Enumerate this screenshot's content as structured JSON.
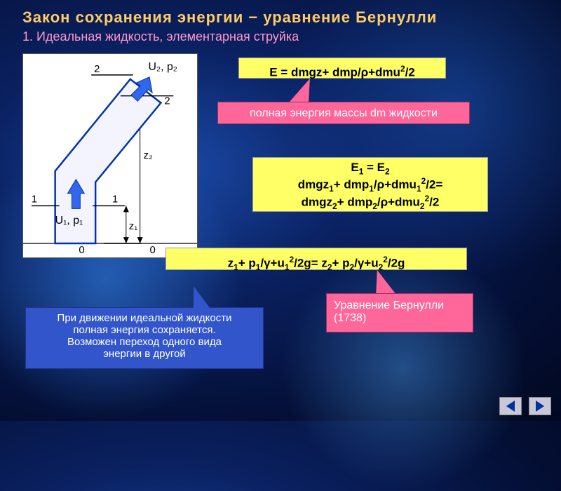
{
  "colors": {
    "title": "#ffcc66",
    "subtitle": "#ff99cc",
    "yellow_box": "#ffff66",
    "pink_box": "#ff6699",
    "blue_box": "#3355cc",
    "nav_arrow": "#003399"
  },
  "title": "Закон сохранения  энергии − уравнение Бернулли",
  "subtitle": "1. Идеальная жидкость, элементарная струйка",
  "diagram": {
    "labels": {
      "u2p2": "U₂, p₂",
      "u1p1": "U₁, p₁",
      "z1": "z₁",
      "z2": "z₂",
      "sec1": "1",
      "sec2": "2",
      "sec0": "0"
    }
  },
  "energy_formula_html": "E = dmgz+ dmp/ρ+dmu<sup>2</sup>/2",
  "mass_energy_text": "полная энергия массы dm жидкости",
  "e1e2_html": "E<sub>1</sub> = E<sub>2</sub><br>dmgz<sub>1</sub>+ dmp<sub>1</sub>/ρ+dmu<sub>1</sub><sup>2</sup>/2=<br>dmgz<sub>2</sub>+ dmp<sub>2</sub>/ρ+dmu<sub>2</sub><sup>2</sup>/2",
  "z_equation_html": "z<sub>1</sub>+ p<sub>1</sub>/γ+u<sub>1</sub><sup>2</sup>/2g= z<sub>2</sub>+ p<sub>2</sub>/γ+u<sub>2</sub><sup>2</sup>/2g",
  "motion_text_html": "При движении идеальной жидкости<br>полная энергия сохраняется.<br>Возможен переход одного вида<br>энергии в другой",
  "bernoulli_label_html": "Уравнение Бернулли<br>(1738)"
}
